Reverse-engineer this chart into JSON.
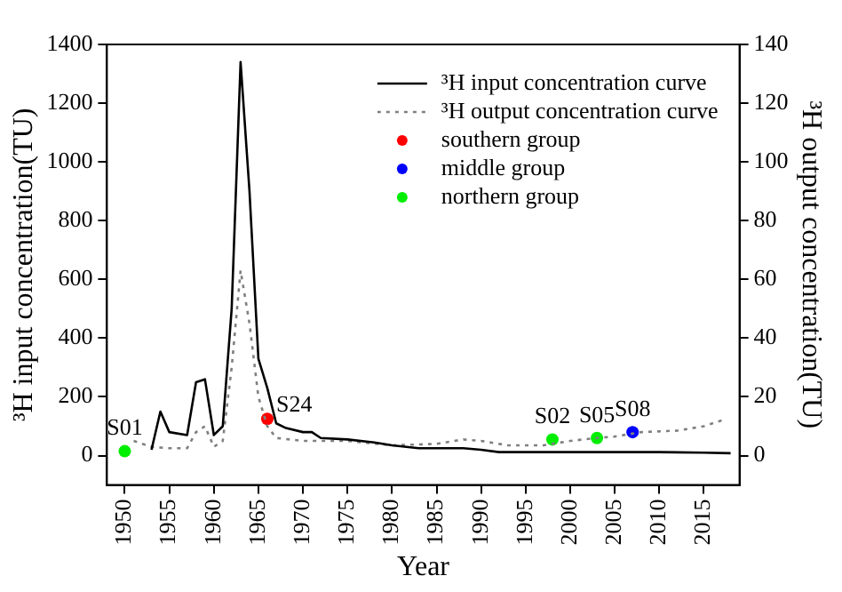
{
  "chart_data": {
    "type": "line",
    "xlabel": "Year",
    "ylabel": "³H input concentration(TU)",
    "y2label": "³H output concentration(TU)",
    "xlim": [
      1948,
      2019
    ],
    "xticks": [
      1950,
      1955,
      1960,
      1965,
      1970,
      1975,
      1980,
      1985,
      1990,
      1995,
      2000,
      2005,
      2010,
      2015
    ],
    "ylim": [
      -100,
      1400
    ],
    "yticks": [
      0,
      200,
      400,
      600,
      800,
      1000,
      1200,
      1400
    ],
    "y2lim": [
      -10,
      140
    ],
    "y2ticks": [
      0,
      20,
      40,
      60,
      80,
      100,
      120,
      140
    ],
    "grid": false,
    "legend": "top right",
    "series": [
      {
        "name": "³H input concentration curve",
        "color": "#000000",
        "line_style": "solid",
        "marker": "none",
        "x": [
          1953,
          1954,
          1955,
          1957,
          1958,
          1959,
          1960,
          1961,
          1962,
          1963,
          1964,
          1965,
          1966,
          1967,
          1968,
          1970,
          1971,
          1972,
          1975,
          1978,
          1980,
          1983,
          1985,
          1988,
          1990,
          1992,
          2000,
          2010,
          2015,
          2018
        ],
        "values": [
          20,
          150,
          80,
          70,
          250,
          260,
          70,
          100,
          500,
          1340,
          900,
          330,
          230,
          110,
          95,
          80,
          80,
          60,
          55,
          45,
          35,
          25,
          25,
          25,
          20,
          12,
          12,
          12,
          10,
          8
        ]
      },
      {
        "name": "³H output concentration curve",
        "axis": "y2",
        "color": "#808080",
        "line_style": "dotted",
        "marker": "none",
        "x": [
          1951,
          1953,
          1955,
          1957,
          1958,
          1959,
          1960,
          1961,
          1962,
          1963,
          1964,
          1965,
          1966,
          1967,
          1970,
          1973,
          1975,
          1980,
          1985,
          1988,
          1990,
          1993,
          1997,
          2000,
          2003,
          2005,
          2008,
          2012,
          2015,
          2017
        ],
        "values": [
          5,
          3,
          2.5,
          2.5,
          8,
          10,
          3,
          5,
          30,
          63,
          45,
          20,
          10,
          6,
          5,
          5,
          5,
          3.5,
          4,
          5.5,
          5,
          3.5,
          3.5,
          5,
          6,
          6.5,
          8,
          8.5,
          10,
          12
        ]
      },
      {
        "name": "southern group",
        "type": "scatter",
        "axis": "y2",
        "color": "#ff0000",
        "marker": "circle",
        "x": [
          1966
        ],
        "values": [
          12.5
        ],
        "value_labels": [
          "S24"
        ]
      },
      {
        "name": "middle group",
        "type": "scatter",
        "axis": "y2",
        "color": "#0000ff",
        "marker": "circle",
        "x": [
          2007
        ],
        "values": [
          8
        ],
        "value_labels": [
          "S08"
        ]
      },
      {
        "name": "northern group",
        "type": "scatter",
        "axis": "y2",
        "color": "#00ee00",
        "marker": "circle",
        "x": [
          1950,
          1998,
          2003
        ],
        "values": [
          1.5,
          5.5,
          6
        ],
        "value_labels": [
          "S01",
          "S02",
          "S05"
        ]
      }
    ]
  }
}
